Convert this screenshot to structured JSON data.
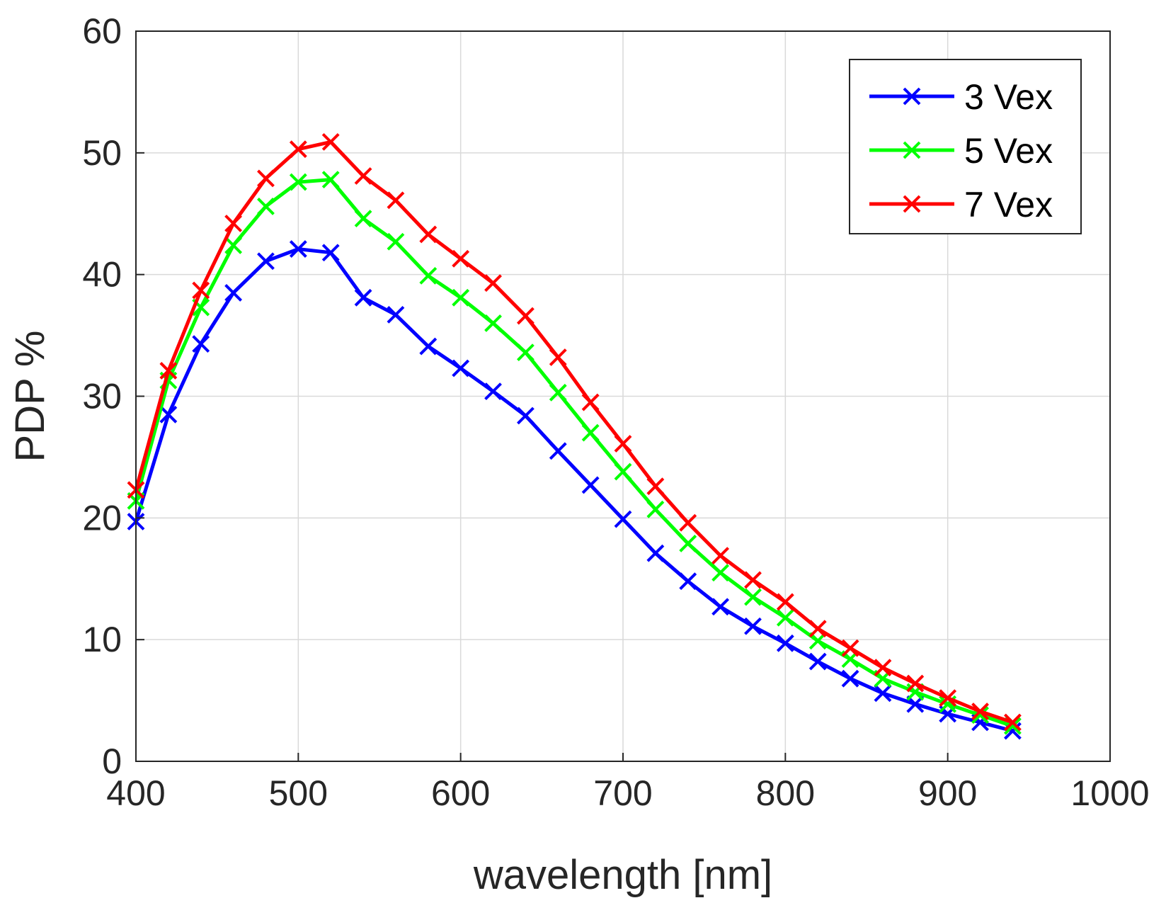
{
  "chart_data": {
    "type": "line",
    "title": "",
    "xlabel": "wavelength [nm]",
    "ylabel": "PDP %",
    "xlim": [
      400,
      1000
    ],
    "ylim": [
      0,
      60
    ],
    "xticks": [
      400,
      500,
      600,
      700,
      800,
      900,
      1000
    ],
    "yticks": [
      0,
      10,
      20,
      30,
      40,
      50,
      60
    ],
    "grid": true,
    "legend_position": "top-right",
    "marker": "x",
    "x": [
      400,
      420,
      440,
      460,
      480,
      500,
      520,
      540,
      560,
      580,
      600,
      620,
      640,
      660,
      680,
      700,
      720,
      740,
      760,
      780,
      800,
      820,
      840,
      860,
      880,
      900,
      920,
      940
    ],
    "series": [
      {
        "name": "3 Vex",
        "color": "#0000ff",
        "values": [
          19.7,
          28.5,
          34.3,
          38.5,
          41.1,
          42.1,
          41.8,
          38.1,
          36.7,
          34.1,
          32.3,
          30.4,
          28.4,
          25.5,
          22.7,
          19.9,
          17.1,
          14.8,
          12.7,
          11.1,
          9.7,
          8.2,
          6.8,
          5.6,
          4.7,
          3.9,
          3.2,
          2.5
        ]
      },
      {
        "name": "5 Vex",
        "color": "#00ff00",
        "values": [
          21.4,
          31.3,
          37.3,
          42.4,
          45.6,
          47.6,
          47.8,
          44.6,
          42.7,
          39.9,
          38.1,
          36.0,
          33.6,
          30.3,
          27.0,
          23.8,
          20.7,
          17.9,
          15.5,
          13.5,
          11.8,
          9.9,
          8.4,
          6.8,
          5.7,
          4.7,
          3.8,
          2.9
        ]
      },
      {
        "name": "7 Vex",
        "color": "#ff0000",
        "values": [
          22.3,
          32.1,
          38.7,
          44.2,
          47.9,
          50.3,
          50.9,
          48.1,
          46.1,
          43.3,
          41.3,
          39.3,
          36.6,
          33.2,
          29.5,
          26.1,
          22.6,
          19.6,
          16.9,
          14.9,
          13.1,
          10.9,
          9.3,
          7.7,
          6.4,
          5.2,
          4.1,
          3.2
        ]
      }
    ]
  }
}
